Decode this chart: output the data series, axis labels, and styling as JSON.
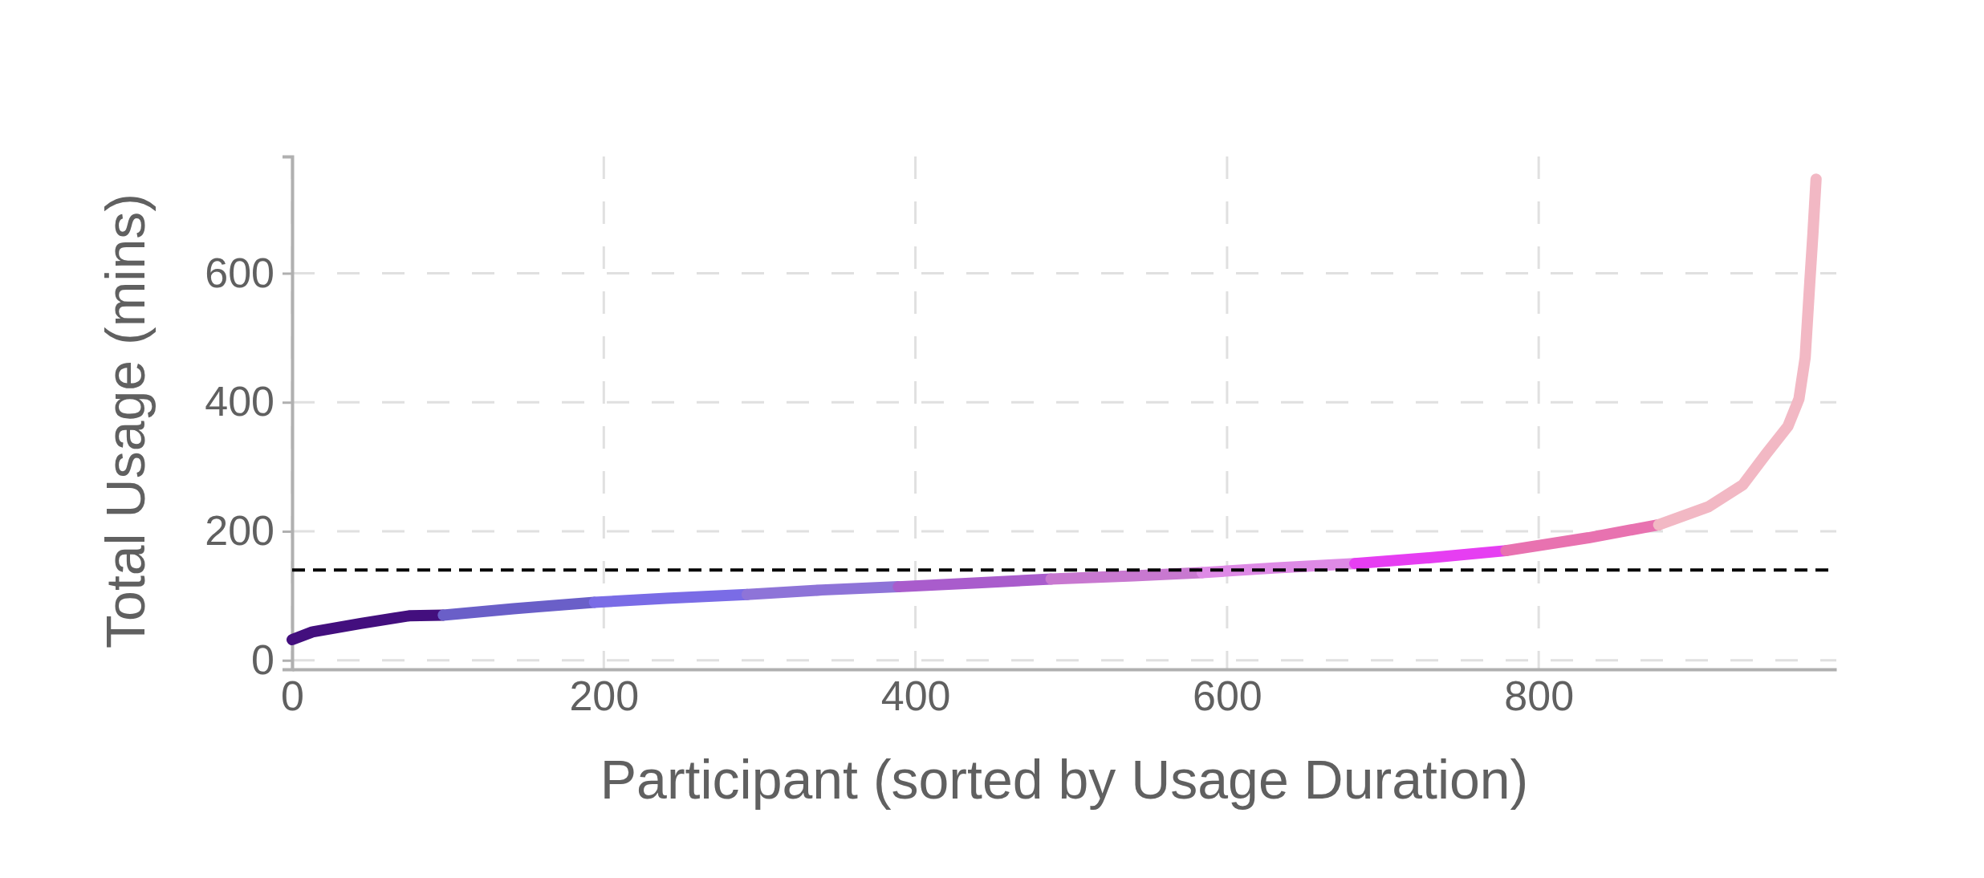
{
  "chart_data": {
    "type": "line",
    "xlabel": "Participant (sorted by Usage Duration)",
    "ylabel": "Total Usage (mins)",
    "xlim": [
      0,
      991
    ],
    "ylim": [
      -14,
      781
    ],
    "xticks": [
      0,
      200,
      400,
      600,
      800
    ],
    "yticks": [
      0,
      200,
      400,
      600
    ],
    "grid": true,
    "line_style": "solid",
    "series": [
      {
        "color": "#430f7e",
        "x": [
          0,
          13,
          44,
          75,
          97
        ],
        "values": [
          32,
          44,
          57,
          69,
          70
        ]
      },
      {
        "color": "#6a5fc8",
        "x": [
          97,
          142,
          194
        ],
        "values": [
          70,
          80,
          90
        ]
      },
      {
        "color": "#7a6ce6",
        "x": [
          194,
          240,
          292
        ],
        "values": [
          90,
          96,
          102
        ]
      },
      {
        "color": "#8e74d8",
        "x": [
          292,
          340,
          389
        ],
        "values": [
          102,
          109,
          114
        ]
      },
      {
        "color": "#a95ccc",
        "x": [
          389,
          440,
          487
        ],
        "values": [
          114,
          120,
          126
        ]
      },
      {
        "color": "#c878d0",
        "x": [
          487,
          540,
          584
        ],
        "values": [
          126,
          131,
          136
        ]
      },
      {
        "color": "#de8ae6",
        "x": [
          584,
          630,
          682
        ],
        "values": [
          136,
          143,
          150
        ]
      },
      {
        "color": "#e63ef2",
        "x": [
          682,
          730,
          779
        ],
        "values": [
          150,
          159,
          170
        ]
      },
      {
        "color": "#e872b0",
        "x": [
          779,
          832,
          877
        ],
        "values": [
          170,
          190,
          210
        ]
      },
      {
        "color": "#f2b8c4",
        "x": [
          877,
          909,
          931,
          946,
          960,
          967,
          971,
          974,
          976,
          978
        ],
        "values": [
          210,
          238,
          272,
          320,
          363,
          405,
          469,
          587,
          662,
          746
        ]
      }
    ],
    "ref_lines": [
      {
        "axis": "y",
        "value": 140,
        "color": "#000000",
        "line_style": "dashed"
      }
    ]
  }
}
